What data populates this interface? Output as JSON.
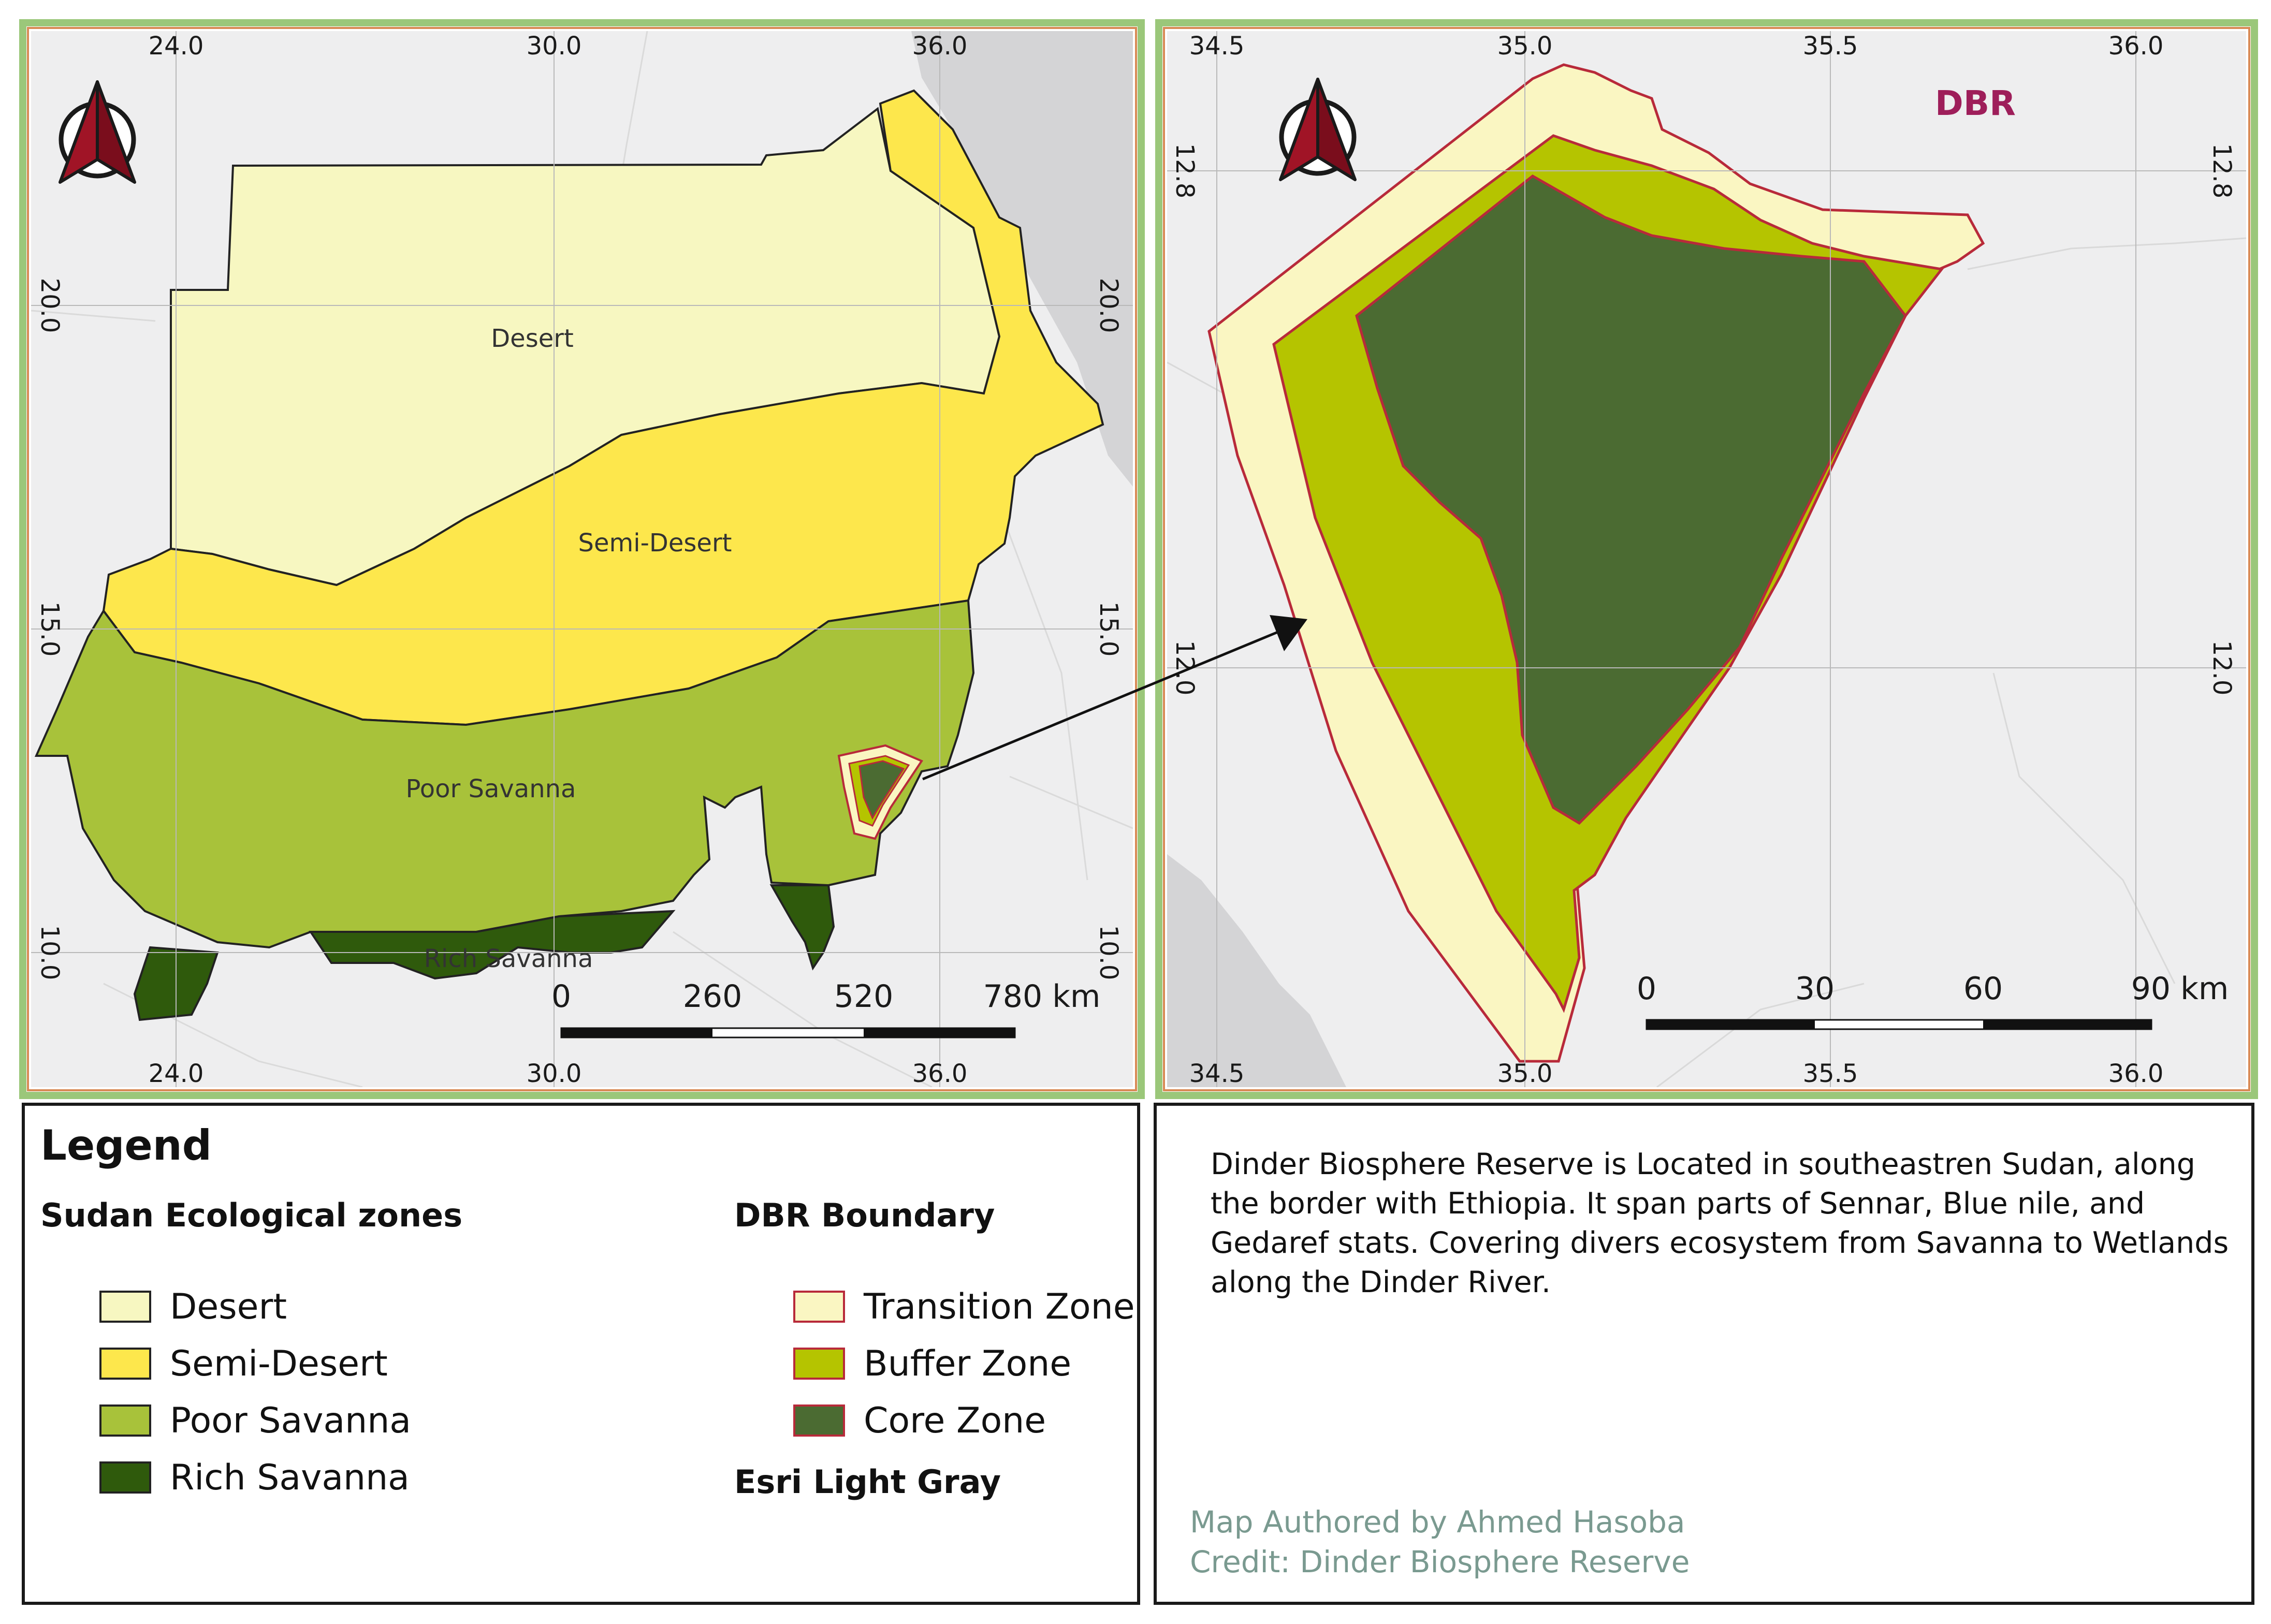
{
  "main_map": {
    "lon_ticks": [
      "24.0",
      "30.0",
      "36.0"
    ],
    "lat_ticks": [
      "20.0",
      "15.0",
      "10.0"
    ],
    "zone_labels": {
      "desert": "Desert",
      "semi_desert": "Semi-Desert",
      "poor_savanna": "Poor Savanna",
      "rich_savanna": "Rich Savanna"
    },
    "scale_labels": [
      "0",
      "260",
      "520",
      "780 km"
    ]
  },
  "inset_map": {
    "title": "DBR",
    "lon_ticks": [
      "34.5",
      "35.0",
      "35.5",
      "36.0"
    ],
    "lat_ticks": [
      "12.8",
      "12.0"
    ],
    "scale_labels": [
      "0",
      "30",
      "60",
      "90 km"
    ]
  },
  "legend": {
    "title": "Legend",
    "zones_heading": "Sudan Ecological zones",
    "zones": [
      {
        "label": "Desert",
        "color": "#f7f7c1"
      },
      {
        "label": "Semi-Desert",
        "color": "#fde74c"
      },
      {
        "label": "Poor Savanna",
        "color": "#a8c23a"
      },
      {
        "label": "Rich Savanna",
        "color": "#2f5a0c"
      }
    ],
    "dbr_heading": "DBR Boundary",
    "dbr": [
      {
        "label": "Transition Zone",
        "color": "#faf6c2",
        "stroke": "#b82a3a"
      },
      {
        "label": "Buffer Zone",
        "color": "#b5c400",
        "stroke": "#b82a3a"
      },
      {
        "label": "Core Zone",
        "color": "#4b6b32",
        "stroke": "#b82a3a"
      }
    ],
    "basemap_heading": "Esri Light Gray"
  },
  "description": {
    "lines": [
      "Dinder Biosphere Reserve is Located in southeastren Sudan, along",
      "the border with Ethiopia. It span parts of Sennar, Blue nile, and",
      "Gedaref stats. Covering divers ecosystem from Savanna to Wetlands",
      "along the Dinder River."
    ]
  },
  "credits": {
    "author": "Map Authored by Ahmed Hasoba",
    "credit": "Credit: Dinder Biosphere Reserve"
  },
  "colors": {
    "frame_green": "#9bc77a",
    "frame_orange": "#d88a55",
    "basemap": "#eeeeef",
    "sea": "#d4d4d6",
    "dbr_title": "#9e1e5a",
    "north_arrow": "#a01426"
  }
}
